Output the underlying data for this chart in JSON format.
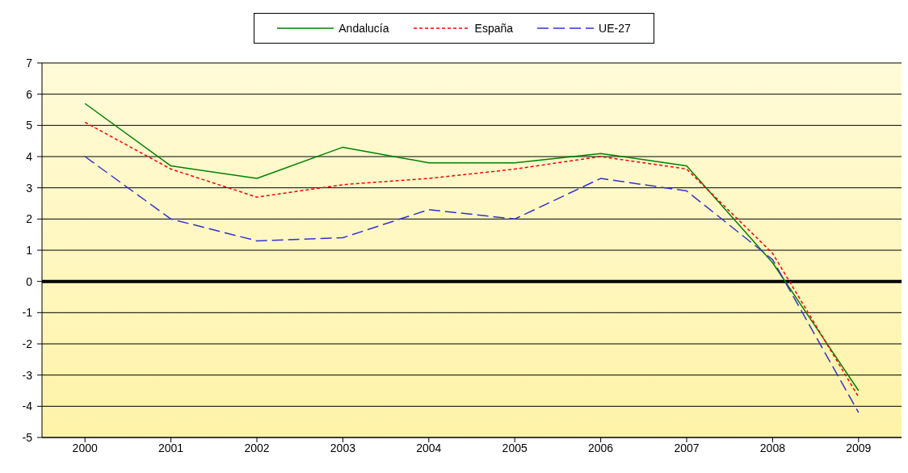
{
  "chart_data": {
    "type": "line",
    "categories": [
      "2000",
      "2001",
      "2002",
      "2003",
      "2004",
      "2005",
      "2006",
      "2007",
      "2008",
      "2009"
    ],
    "series": [
      {
        "name": "Andalucía",
        "color": "#008000",
        "line_style": "solid",
        "values": [
          5.7,
          3.7,
          3.3,
          4.3,
          3.8,
          3.8,
          4.1,
          3.7,
          0.6,
          -3.5
        ]
      },
      {
        "name": "España",
        "color": "#ff0000",
        "line_style": "dotted",
        "values": [
          5.1,
          3.6,
          2.7,
          3.1,
          3.3,
          3.6,
          4.0,
          3.6,
          0.9,
          -3.7
        ]
      },
      {
        "name": "UE-27",
        "color": "#3333cc",
        "line_style": "dashed",
        "values": [
          4.0,
          2.0,
          1.3,
          1.4,
          2.3,
          2.0,
          3.3,
          2.9,
          0.7,
          -4.2
        ]
      }
    ],
    "ylim": [
      -5,
      7
    ],
    "yticks": [
      -5,
      -4,
      -3,
      -2,
      -1,
      0,
      1,
      2,
      3,
      4,
      5,
      6,
      7
    ],
    "grid": "y",
    "legend": "top",
    "marker": "none",
    "ref_lines": [
      {
        "axis": "y",
        "value": 0,
        "color": "#000000"
      }
    ]
  }
}
